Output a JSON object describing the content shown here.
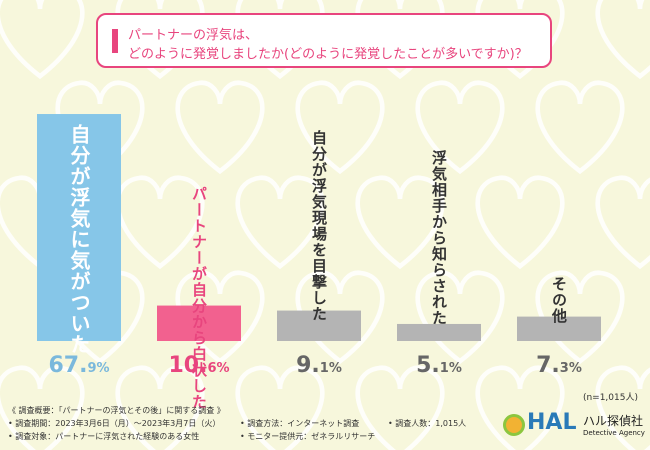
{
  "title": {
    "line1": "パートナーの浮気は、",
    "line2": "どのように発覚しましたか(どのように発覚したことが多いですか)？"
  },
  "chart_data": {
    "type": "bar",
    "categories": [
      "自分が浮気に気がついた",
      "パートナーが自分から白状した",
      "自分が浮気現場を目撃した",
      "浮気相手から知らされた",
      "その他"
    ],
    "values": [
      67.9,
      10.6,
      9.1,
      5.1,
      7.3
    ],
    "value_labels": [
      {
        "int": "67.",
        "dec": "9%"
      },
      {
        "int": "10.",
        "dec": "6%"
      },
      {
        "int": "9.",
        "dec": "1%"
      },
      {
        "int": "5.",
        "dec": "1%"
      },
      {
        "int": "7.",
        "dec": "3%"
      }
    ],
    "colors": [
      "#86c6e8",
      "#f2618f",
      "#b4b4b4",
      "#b4b4b4",
      "#b4b4b4"
    ],
    "label_colors": [
      "#ffffff",
      "#e8457e",
      "#333333",
      "#333333",
      "#333333"
    ],
    "value_colors": [
      "#7ab8dc",
      "#e8457e",
      "#666666",
      "#666666",
      "#666666"
    ],
    "ylim": [
      0,
      70
    ]
  },
  "sample_size": "(n=1,015人)",
  "survey": {
    "overview": "《 調査概要：「パートナーの浮気とその後」に関する調査 》",
    "period": "• 調査期間：2023年3月6日（月）～2023年3月7日（火）",
    "target": "• 調査対象：パートナーに浮気された経験のある女性",
    "method": "• 調査方法：インターネット調査",
    "provider": "• モニター提供元：ゼネラルリサーチ",
    "respondents": "• 調査人数：1,015人"
  },
  "logo": {
    "mark": "HAL",
    "name_jp": "ハル探偵社",
    "name_en": "Detective Agency",
    "colors": [
      "#2a7ab8",
      "#f2b233",
      "#8cc63f"
    ]
  },
  "background": {
    "base": "#f7f7dc",
    "pattern": "#ffffff"
  }
}
